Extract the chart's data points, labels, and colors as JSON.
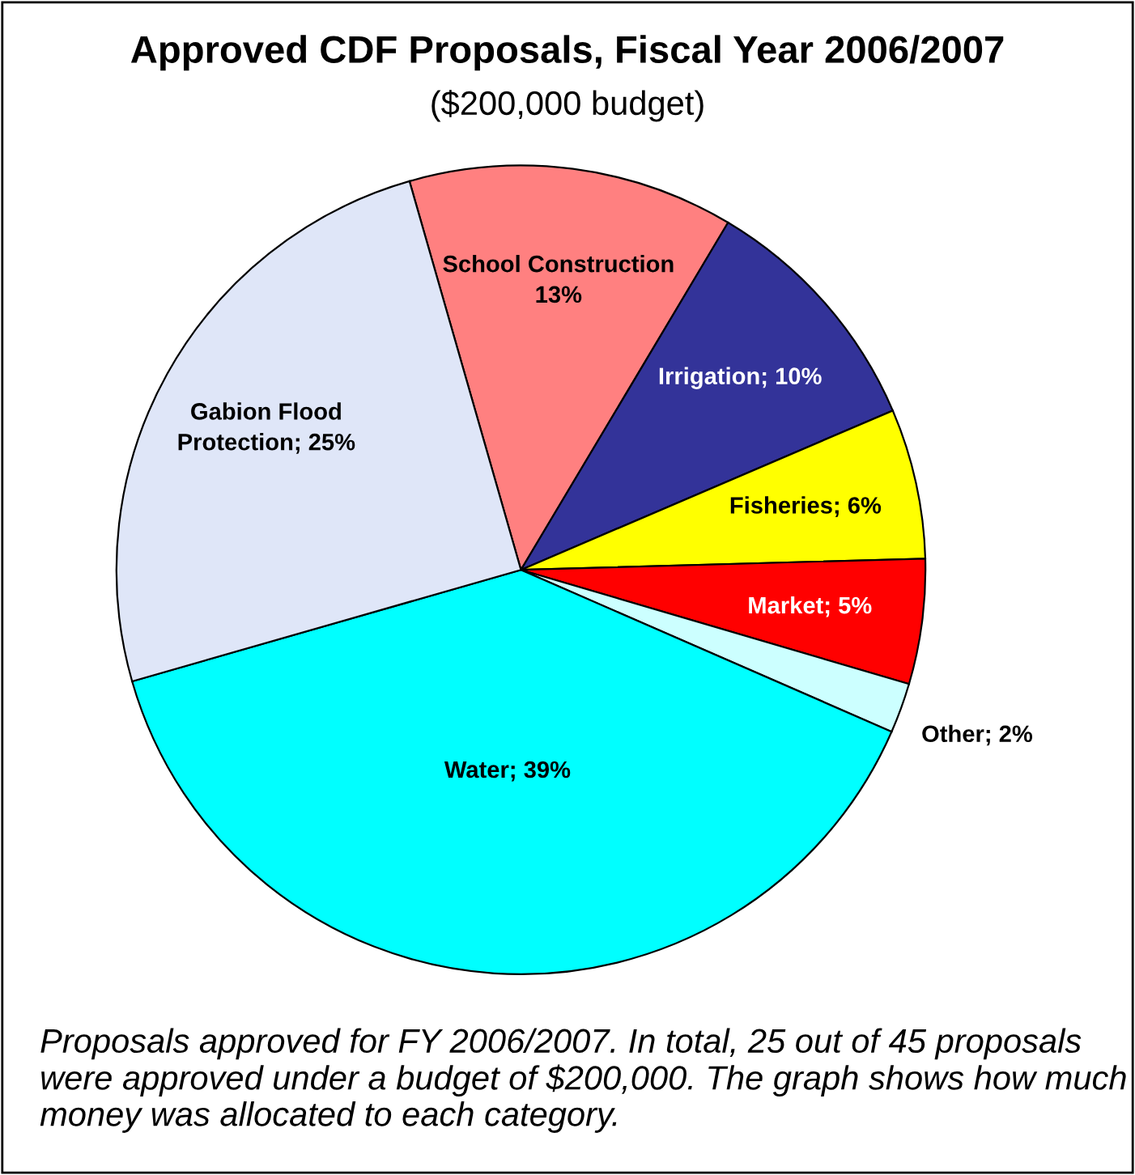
{
  "chart_data": {
    "type": "pie",
    "title": "Approved CDF Proposals, Fiscal Year 2006/2007",
    "subtitle": "($200,000 budget)",
    "categories": [
      "School Construction",
      "Irrigation",
      "Fisheries",
      "Market",
      "Other",
      "Water",
      "Gabion Flood Protection"
    ],
    "value_labels": [
      "13%",
      "; 10%",
      "; 6%",
      "; 5%",
      "; 2%",
      "; 39%",
      "; 25%"
    ],
    "values": [
      13,
      10,
      6,
      5,
      2,
      39,
      25
    ],
    "colors": [
      "#ff8080",
      "#333399",
      "#ffff00",
      "#ff0000",
      "#ccffff",
      "#00ffff",
      "#dfe6f8"
    ],
    "annotations": [
      "Proposals approved for FY 2006/2007. In total, 25 out of 45 proposals were approved under a budget of $200,000. The graph shows how much money was allocated to each category."
    ]
  }
}
